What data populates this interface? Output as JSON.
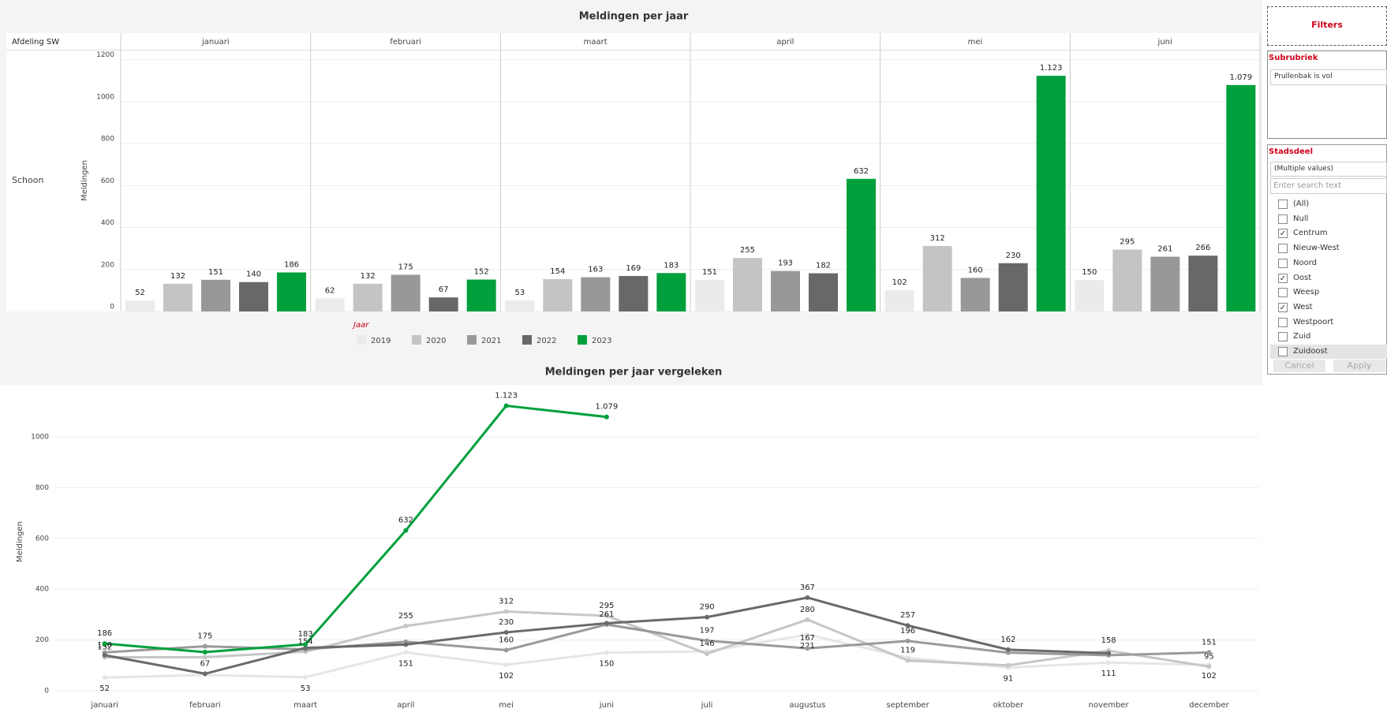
{
  "chart_data": [
    {
      "type": "bar",
      "title": "Meldingen per jaar",
      "row_header": "Afdeling SW",
      "row_label": "Schoon",
      "y_label": "Meldingen",
      "legend_title": "Jaar",
      "categories": [
        "januari",
        "februari",
        "maart",
        "april",
        "mei",
        "juni"
      ],
      "series": [
        {
          "name": "2019",
          "color": "#ebebeb",
          "values": [
            52,
            62,
            53,
            151,
            102,
            150
          ]
        },
        {
          "name": "2020",
          "color": "#c4c4c4",
          "values": [
            132,
            132,
            154,
            255,
            312,
            295
          ]
        },
        {
          "name": "2021",
          "color": "#989898",
          "values": [
            151,
            175,
            163,
            193,
            160,
            261
          ]
        },
        {
          "name": "2022",
          "color": "#686868",
          "values": [
            140,
            67,
            169,
            182,
            230,
            266
          ]
        },
        {
          "name": "2023",
          "color": "#00a03c",
          "values": [
            186,
            152,
            183,
            632,
            1123,
            1079
          ],
          "value_labels": [
            "186",
            "152",
            "183",
            "632",
            "1.123",
            "1.079"
          ]
        }
      ],
      "ylim": [
        0,
        1240
      ],
      "yticks": [
        0,
        200,
        400,
        600,
        800,
        1000,
        1200
      ],
      "grid": true
    },
    {
      "type": "line",
      "title": "Meldingen per jaar vergeleken",
      "y_label": "Meldingen",
      "categories": [
        "januari",
        "februari",
        "maart",
        "april",
        "mei",
        "juni",
        "juli",
        "augustus",
        "september",
        "oktober",
        "november",
        "december"
      ],
      "series": [
        {
          "name": "2019",
          "color": "#e6e6e6",
          "values": [
            52,
            62,
            53,
            151,
            102,
            150,
            155,
            221,
            130,
            91,
            111,
            102
          ],
          "value_labels": [
            "52",
            null,
            "53",
            "151",
            "102",
            "150",
            null,
            "221",
            null,
            "91",
            "111",
            "102"
          ]
        },
        {
          "name": "2020",
          "color": "#c6c6c6",
          "values": [
            132,
            132,
            154,
            255,
            312,
            295,
            146,
            280,
            119,
            100,
            158,
            95
          ],
          "value_labels": [
            "132",
            null,
            "154",
            "255",
            "312",
            "295",
            "146",
            "280",
            "119",
            null,
            "158",
            "95"
          ]
        },
        {
          "name": "2021",
          "color": "#9a9a9a",
          "values": [
            151,
            175,
            163,
            193,
            160,
            261,
            197,
            167,
            196,
            150,
            140,
            151
          ],
          "value_labels": [
            null,
            "175",
            null,
            null,
            "160",
            "261",
            "197",
            "167",
            "196",
            null,
            null,
            "151"
          ]
        },
        {
          "name": "2022",
          "color": "#6a6a6a",
          "values": [
            140,
            67,
            169,
            182,
            230,
            266,
            290,
            367,
            257,
            162,
            148,
            null
          ],
          "value_labels": [
            "140",
            "67",
            null,
            null,
            "230",
            null,
            "290",
            "367",
            "257",
            "162",
            null,
            null
          ]
        },
        {
          "name": "2023",
          "color": "#00a03c",
          "values": [
            186,
            152,
            183,
            632,
            1123,
            1079,
            null,
            null,
            null,
            null,
            null,
            null
          ],
          "value_labels": [
            "186",
            null,
            "183",
            "632",
            "1.123",
            "1.079",
            null,
            null,
            null,
            null,
            null,
            null
          ]
        }
      ],
      "ylim": [
        -25,
        1190
      ],
      "yticks": [
        0,
        200,
        400,
        600,
        800,
        1000
      ],
      "grid": true
    }
  ],
  "filters": {
    "title": "Filters",
    "groups": [
      {
        "title": "Subrubriek",
        "selected": "Prullenbak is vol"
      },
      {
        "title": "Stadsdeel",
        "selected": "(Multiple values)",
        "search_placeholder": "Enter search text",
        "items": [
          {
            "label": "(All)",
            "checked": false
          },
          {
            "label": "Null",
            "checked": false
          },
          {
            "label": "Centrum",
            "checked": true
          },
          {
            "label": "Nieuw-West",
            "checked": false
          },
          {
            "label": "Noord",
            "checked": false
          },
          {
            "label": "Oost",
            "checked": true
          },
          {
            "label": "Weesp",
            "checked": false
          },
          {
            "label": "West",
            "checked": true
          },
          {
            "label": "Westpoort",
            "checked": false
          },
          {
            "label": "Zuid",
            "checked": false
          },
          {
            "label": "Zuidoost",
            "checked": false
          }
        ],
        "buttons": [
          "Cancel",
          "Apply"
        ]
      }
    ]
  }
}
